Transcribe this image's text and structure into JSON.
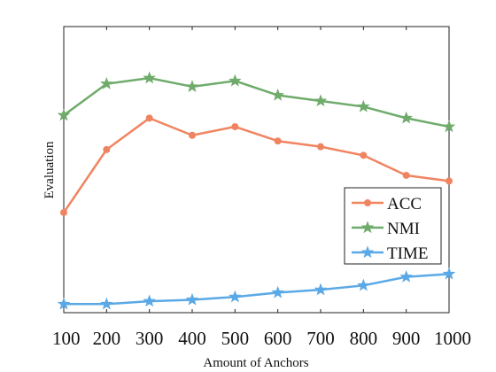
{
  "chart_data": {
    "type": "line",
    "xlabel": "Amount of Anchors",
    "ylabel": "Evaluation",
    "x": [
      100,
      200,
      300,
      400,
      500,
      600,
      700,
      800,
      900,
      1000
    ],
    "xlim": [
      100,
      1000
    ],
    "ylim": [
      0,
      1
    ],
    "grid": false,
    "legend_position": "right",
    "series": [
      {
        "name": "ACC",
        "color": "#f08461",
        "marker": "circle",
        "values": [
          0.35,
          0.57,
          0.68,
          0.62,
          0.65,
          0.6,
          0.58,
          0.55,
          0.48,
          0.46
        ]
      },
      {
        "name": "NMI",
        "color": "#6fab6b",
        "marker": "star",
        "values": [
          0.69,
          0.8,
          0.82,
          0.79,
          0.81,
          0.76,
          0.74,
          0.72,
          0.68,
          0.65
        ]
      },
      {
        "name": "TIME",
        "color": "#5aa9e6",
        "marker": "star",
        "values": [
          0.03,
          0.03,
          0.04,
          0.045,
          0.055,
          0.07,
          0.08,
          0.095,
          0.125,
          0.135
        ]
      }
    ]
  }
}
